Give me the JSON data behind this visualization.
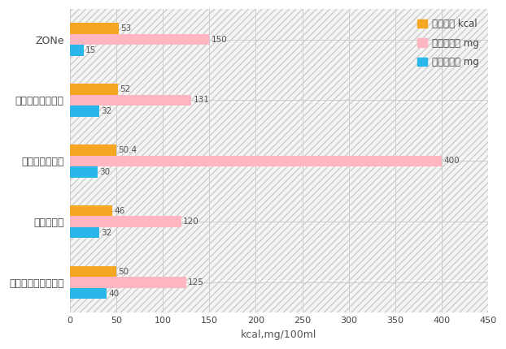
{
  "categories": [
    "モンスターエナジー",
    "レッドブル",
    "アイアン　ボス",
    "ドラゴンブースト",
    "ZONe"
  ],
  "calorie": [
    50,
    46,
    50.4,
    52,
    53
  ],
  "arginine": [
    125,
    120,
    400,
    131,
    150
  ],
  "caffeine": [
    40,
    32,
    30,
    32,
    15
  ],
  "calorie_color": "#F5A623",
  "arginine_color": "#FFB6C1",
  "caffeine_color": "#29B6E8",
  "xlabel": "kcal,mg/100ml",
  "xlim": [
    0,
    450
  ],
  "xticks": [
    0,
    50,
    100,
    150,
    200,
    250,
    300,
    350,
    400,
    450
  ],
  "legend_labels": [
    "カロリー kcal",
    "アルギニン mg",
    "カフェイン mg"
  ],
  "bar_height": 0.18,
  "background_color": "#ffffff",
  "hatch_color": "#dddddd",
  "grid_color": "#cccccc",
  "label_fontsize": 9,
  "tick_fontsize": 8,
  "value_fontsize": 7.5,
  "legend_fontsize": 8.5
}
